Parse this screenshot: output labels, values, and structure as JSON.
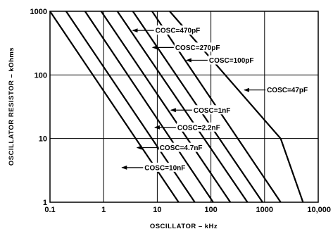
{
  "chart_data": {
    "type": "line",
    "xscale": "log",
    "yscale": "log",
    "xlim": [
      0.1,
      10000
    ],
    "ylim": [
      1,
      1000
    ],
    "xlabel": "OSCILLATOR – kHz",
    "ylabel": "OSCILLATOR RESISTOR – kOhms",
    "x_ticks": [
      "0.1",
      "1",
      "10",
      "100",
      "1000",
      "10,000"
    ],
    "y_ticks": [
      "1",
      "10",
      "100",
      "1000"
    ],
    "grid": true,
    "series": [
      {
        "name": "COSC=10nF",
        "x": [
          0.1,
          25
        ],
        "y": [
          1000,
          1
        ]
      },
      {
        "name": "COSC=4.7nF",
        "x": [
          0.2,
          50
        ],
        "y": [
          1000,
          1
        ]
      },
      {
        "name": "COSC=2.2nF",
        "x": [
          0.45,
          110
        ],
        "y": [
          1000,
          1
        ]
      },
      {
        "name": "COSC=1nF",
        "x": [
          0.9,
          230
        ],
        "y": [
          1000,
          1
        ]
      },
      {
        "name": "COSC=470pF",
        "x": [
          1.8,
          480
        ],
        "y": [
          1000,
          1
        ]
      },
      {
        "name": "COSC=270pF",
        "x": [
          3.5,
          920
        ],
        "y": [
          1000,
          1
        ]
      },
      {
        "name": "COSC=100pF",
        "x": [
          8,
          2000
        ],
        "y": [
          1000,
          1
        ]
      },
      {
        "name": "COSC=47pF",
        "x": [
          17,
          2000,
          5200
        ],
        "y": [
          1000,
          10,
          1
        ]
      }
    ],
    "annotations": [
      {
        "text": "COSC=470pF",
        "arrow_x": 3.5,
        "y": 500
      },
      {
        "text": "COSC=270pF",
        "arrow_x": 8.2,
        "y": 270
      },
      {
        "text": "COSC=100pF",
        "arrow_x": 35,
        "y": 170
      },
      {
        "text": "COSC=47pF",
        "arrow_x": 420,
        "y": 58
      },
      {
        "text": "COSC=1nF",
        "arrow_x": 18,
        "y": 28
      },
      {
        "text": "COSC=2.2nF",
        "arrow_x": 9,
        "y": 15
      },
      {
        "text": "COSC=4.7nF",
        "arrow_x": 4.2,
        "y": 7.2
      },
      {
        "text": "COSC=10nF",
        "arrow_x": 2.2,
        "y": 3.5
      }
    ]
  }
}
